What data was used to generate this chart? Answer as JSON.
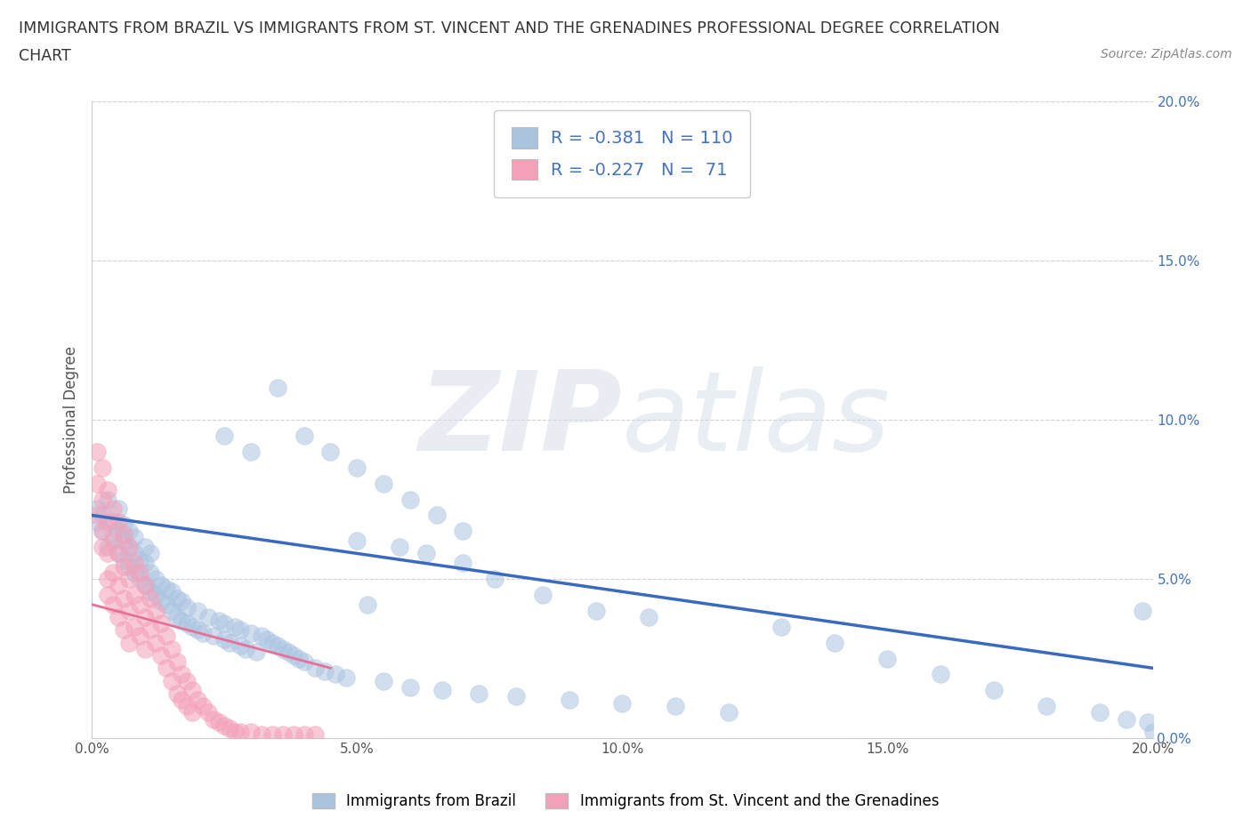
{
  "title_line1": "IMMIGRANTS FROM BRAZIL VS IMMIGRANTS FROM ST. VINCENT AND THE GRENADINES PROFESSIONAL DEGREE CORRELATION",
  "title_line2": "CHART",
  "source": "Source: ZipAtlas.com",
  "ylabel": "Professional Degree",
  "xlim": [
    0.0,
    0.2
  ],
  "ylim": [
    0.0,
    0.2
  ],
  "xticks": [
    0.0,
    0.05,
    0.1,
    0.15,
    0.2
  ],
  "yticks": [
    0.0,
    0.05,
    0.1,
    0.15,
    0.2
  ],
  "brazil_R": -0.381,
  "brazil_N": 110,
  "svg_R": -0.227,
  "svg_N": 71,
  "brazil_color": "#aac4e0",
  "svg_color": "#f4a0b8",
  "brazil_line_color": "#3a6abf",
  "svg_line_color": "#e87098",
  "legend_label_brazil": "Immigrants from Brazil",
  "legend_label_svg": "Immigrants from St. Vincent and the Grenadines",
  "brazil_trend_x0": 0.0,
  "brazil_trend_y0": 0.07,
  "brazil_trend_x1": 0.2,
  "brazil_trend_y1": 0.022,
  "svg_trend_x0": 0.0,
  "svg_trend_y0": 0.042,
  "svg_trend_x1": 0.045,
  "svg_trend_y1": 0.022,
  "brazil_scatter_x": [
    0.001,
    0.001,
    0.002,
    0.002,
    0.003,
    0.003,
    0.004,
    0.004,
    0.005,
    0.005,
    0.005,
    0.006,
    0.006,
    0.006,
    0.007,
    0.007,
    0.007,
    0.008,
    0.008,
    0.008,
    0.009,
    0.009,
    0.01,
    0.01,
    0.01,
    0.011,
    0.011,
    0.011,
    0.012,
    0.012,
    0.013,
    0.013,
    0.014,
    0.014,
    0.015,
    0.015,
    0.016,
    0.016,
    0.017,
    0.017,
    0.018,
    0.018,
    0.019,
    0.02,
    0.02,
    0.021,
    0.022,
    0.023,
    0.024,
    0.025,
    0.025,
    0.026,
    0.027,
    0.028,
    0.028,
    0.029,
    0.03,
    0.031,
    0.032,
    0.033,
    0.034,
    0.035,
    0.036,
    0.037,
    0.038,
    0.039,
    0.04,
    0.042,
    0.044,
    0.046,
    0.048,
    0.05,
    0.052,
    0.055,
    0.058,
    0.06,
    0.063,
    0.066,
    0.07,
    0.073,
    0.076,
    0.08,
    0.085,
    0.09,
    0.095,
    0.1,
    0.105,
    0.11,
    0.12,
    0.13,
    0.14,
    0.15,
    0.16,
    0.17,
    0.18,
    0.19,
    0.195,
    0.198,
    0.199,
    0.2,
    0.025,
    0.03,
    0.035,
    0.04,
    0.045,
    0.05,
    0.055,
    0.06,
    0.065,
    0.07
  ],
  "brazil_scatter_y": [
    0.068,
    0.072,
    0.065,
    0.07,
    0.06,
    0.075,
    0.063,
    0.068,
    0.058,
    0.065,
    0.072,
    0.056,
    0.062,
    0.067,
    0.054,
    0.06,
    0.065,
    0.052,
    0.058,
    0.063,
    0.05,
    0.056,
    0.048,
    0.055,
    0.06,
    0.046,
    0.052,
    0.058,
    0.045,
    0.05,
    0.043,
    0.048,
    0.042,
    0.047,
    0.04,
    0.046,
    0.038,
    0.044,
    0.037,
    0.043,
    0.036,
    0.041,
    0.035,
    0.034,
    0.04,
    0.033,
    0.038,
    0.032,
    0.037,
    0.031,
    0.036,
    0.03,
    0.035,
    0.029,
    0.034,
    0.028,
    0.033,
    0.027,
    0.032,
    0.031,
    0.03,
    0.029,
    0.028,
    0.027,
    0.026,
    0.025,
    0.024,
    0.022,
    0.021,
    0.02,
    0.019,
    0.062,
    0.042,
    0.018,
    0.06,
    0.016,
    0.058,
    0.015,
    0.055,
    0.014,
    0.05,
    0.013,
    0.045,
    0.012,
    0.04,
    0.011,
    0.038,
    0.01,
    0.008,
    0.035,
    0.03,
    0.025,
    0.02,
    0.015,
    0.01,
    0.008,
    0.006,
    0.04,
    0.005,
    0.002,
    0.095,
    0.09,
    0.11,
    0.095,
    0.09,
    0.085,
    0.08,
    0.075,
    0.07,
    0.065
  ],
  "svg_scatter_x": [
    0.001,
    0.001,
    0.001,
    0.002,
    0.002,
    0.002,
    0.002,
    0.003,
    0.003,
    0.003,
    0.003,
    0.003,
    0.004,
    0.004,
    0.004,
    0.004,
    0.005,
    0.005,
    0.005,
    0.005,
    0.006,
    0.006,
    0.006,
    0.006,
    0.007,
    0.007,
    0.007,
    0.007,
    0.008,
    0.008,
    0.008,
    0.009,
    0.009,
    0.009,
    0.01,
    0.01,
    0.01,
    0.011,
    0.011,
    0.012,
    0.012,
    0.013,
    0.013,
    0.014,
    0.014,
    0.015,
    0.015,
    0.016,
    0.016,
    0.017,
    0.017,
    0.018,
    0.018,
    0.019,
    0.019,
    0.02,
    0.021,
    0.022,
    0.023,
    0.024,
    0.025,
    0.026,
    0.027,
    0.028,
    0.03,
    0.032,
    0.034,
    0.036,
    0.038,
    0.04,
    0.042
  ],
  "svg_scatter_y": [
    0.09,
    0.08,
    0.07,
    0.085,
    0.075,
    0.065,
    0.06,
    0.078,
    0.068,
    0.058,
    0.05,
    0.045,
    0.072,
    0.062,
    0.052,
    0.042,
    0.068,
    0.058,
    0.048,
    0.038,
    0.064,
    0.054,
    0.044,
    0.034,
    0.06,
    0.05,
    0.04,
    0.03,
    0.055,
    0.045,
    0.035,
    0.052,
    0.042,
    0.032,
    0.048,
    0.038,
    0.028,
    0.044,
    0.034,
    0.04,
    0.03,
    0.036,
    0.026,
    0.032,
    0.022,
    0.028,
    0.018,
    0.024,
    0.014,
    0.02,
    0.012,
    0.018,
    0.01,
    0.015,
    0.008,
    0.012,
    0.01,
    0.008,
    0.006,
    0.005,
    0.004,
    0.003,
    0.002,
    0.002,
    0.002,
    0.001,
    0.001,
    0.001,
    0.001,
    0.001,
    0.001
  ]
}
